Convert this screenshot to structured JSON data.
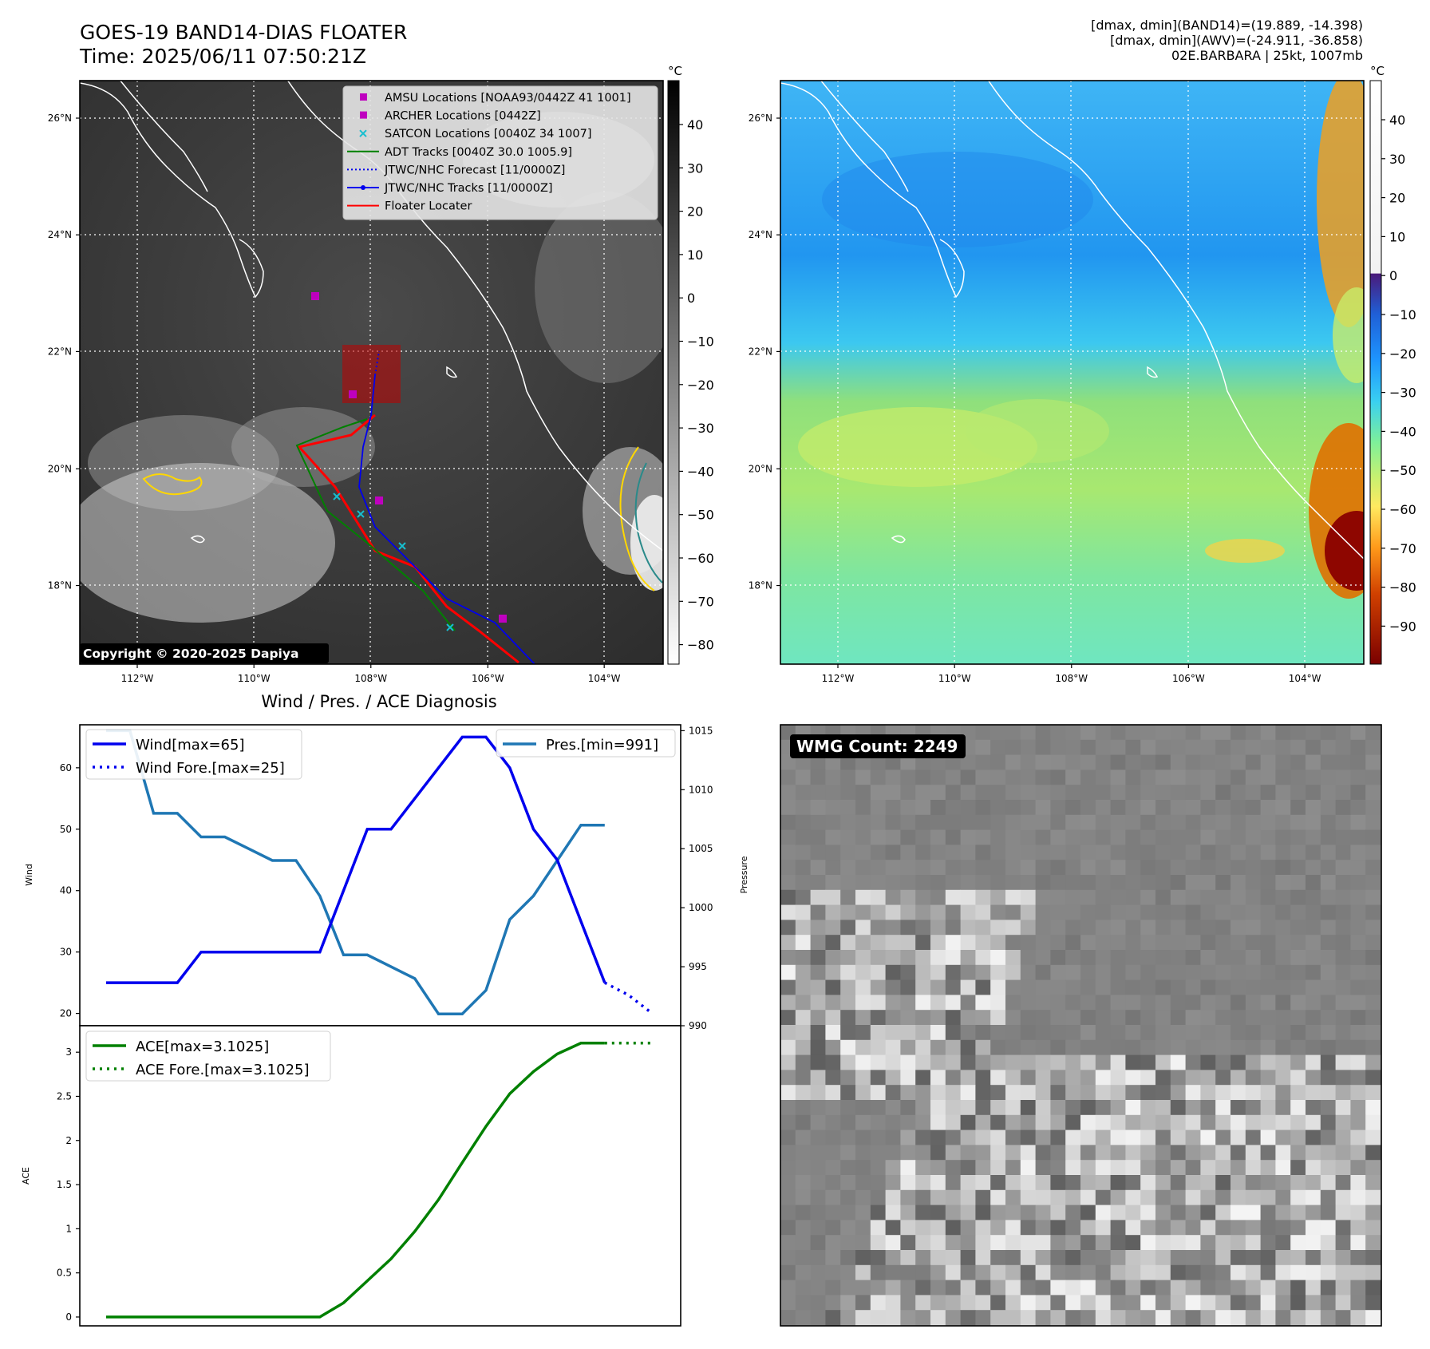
{
  "header": {
    "title_line1": "GOES-19 BAND14-DIAS FLOATER",
    "title_line2": "Time: 2025/06/11 07:50:21Z",
    "info_line1": "[dmax, dmin](BAND14)=(19.889, -14.398)",
    "info_line2": "[dmax, dmin](AWV)=(-24.911, -36.858)",
    "info_line3": "02E.BARBARA | 25kt, 1007mb"
  },
  "colors": {
    "wind": "#0000ee",
    "pressure": "#1f77b4",
    "ace": "#008000",
    "floater": "#ff0000",
    "amsu": "#bf00bf",
    "satcon": "#17becf",
    "adt": "#008000"
  },
  "map_ir": {
    "lon_ticks": [
      "112°W",
      "110°W",
      "108°W",
      "106°W",
      "104°W"
    ],
    "lat_ticks": [
      "26°N",
      "24°N",
      "22°N",
      "20°N",
      "18°N"
    ],
    "colorbar_unit": "°C",
    "colorbar_ticks": [
      "40",
      "30",
      "20",
      "10",
      "0",
      "−10",
      "−20",
      "−30",
      "−40",
      "−50",
      "−60",
      "−70",
      "−80"
    ],
    "legend": [
      {
        "label": "AMSU Locations [NOAA93/0442Z 41 1001]",
        "icon": "magenta-square"
      },
      {
        "label": "ARCHER Locations [0442Z]",
        "icon": "magenta-square"
      },
      {
        "label": "SATCON Locations [0040Z 34 1007]",
        "icon": "cyan-x"
      },
      {
        "label": "ADT Tracks [0040Z 30.0 1005.9]",
        "icon": "green-line"
      },
      {
        "label": "JTWC/NHC Forecast [11/0000Z]",
        "icon": "blue-dotted-line"
      },
      {
        "label": "JTWC/NHC Tracks [11/0000Z]",
        "icon": "blue-dot-line"
      },
      {
        "label": "Floater Locater",
        "icon": "red-line"
      }
    ],
    "copyright": "Copyright © 2020-2025 Dapiya"
  },
  "map_wv": {
    "lon_ticks": [
      "112°W",
      "110°W",
      "108°W",
      "106°W",
      "104°W"
    ],
    "lat_ticks": [
      "26°N",
      "24°N",
      "22°N",
      "20°N",
      "18°N"
    ],
    "colorbar_unit": "°C",
    "colorbar_ticks": [
      "40",
      "30",
      "20",
      "10",
      "0",
      "−10",
      "−20",
      "−30",
      "−40",
      "−50",
      "−60",
      "−70",
      "−80",
      "−90"
    ]
  },
  "wmg": {
    "label": "WMG Count: 2249"
  },
  "chart_data": [
    {
      "type": "line",
      "title": "Wind / Pres. / ACE Diagnosis",
      "ylabel": "Wind",
      "ylim": [
        18,
        67
      ],
      "yticks": [
        20,
        30,
        40,
        50,
        60
      ],
      "x": [
        0,
        1,
        2,
        3,
        4,
        5,
        6,
        7,
        8,
        9,
        10,
        11,
        12,
        13,
        14,
        15,
        16,
        17,
        18,
        19,
        20,
        21,
        22
      ],
      "series": [
        {
          "name": "Wind[max=65]",
          "values": [
            25,
            25,
            25,
            25,
            30,
            30,
            30,
            30,
            30,
            30,
            40,
            50,
            50,
            55,
            60,
            65,
            65,
            60,
            50,
            45,
            35,
            25,
            null
          ]
        },
        {
          "name": "Wind Fore.[max=25]",
          "x": [
            21,
            22,
            23
          ],
          "values": [
            25,
            23,
            20
          ]
        }
      ]
    },
    {
      "type": "line",
      "ylabel": "Pressure",
      "ylim": [
        990,
        1015.5
      ],
      "yticks": [
        990,
        995,
        1000,
        1005,
        1010,
        1015
      ],
      "x": [
        0,
        1,
        2,
        3,
        4,
        5,
        6,
        7,
        8,
        9,
        10,
        11,
        12,
        13,
        14,
        15,
        16,
        17,
        18,
        19,
        20,
        21
      ],
      "series": [
        {
          "name": "Pres.[min=991]",
          "values": [
            1015,
            1015,
            1008,
            1008,
            1006,
            1006,
            1005,
            1004,
            1004,
            1001,
            996,
            996,
            995,
            994,
            991,
            991,
            993,
            999,
            1001,
            1004,
            1007,
            1007
          ]
        }
      ]
    },
    {
      "type": "line",
      "ylabel": "ACE",
      "ylim": [
        -0.1,
        3.3
      ],
      "yticks": [
        0.0,
        0.5,
        1.0,
        1.5,
        2.0,
        2.5,
        3.0
      ],
      "x": [
        0,
        1,
        2,
        3,
        4,
        5,
        6,
        7,
        8,
        9,
        10,
        11,
        12,
        13,
        14,
        15,
        16,
        17,
        18,
        19,
        20,
        21
      ],
      "series": [
        {
          "name": "ACE[max=3.1025]",
          "values": [
            0,
            0,
            0,
            0,
            0,
            0,
            0,
            0,
            0,
            0,
            0.16,
            0.41,
            0.66,
            0.97,
            1.33,
            1.75,
            2.16,
            2.53,
            2.78,
            2.98,
            3.1025,
            3.1025
          ]
        },
        {
          "name": "ACE Fore.[max=3.1025]",
          "x": [
            21,
            22,
            23
          ],
          "values": [
            3.1025,
            3.1025,
            3.1025
          ]
        }
      ]
    }
  ]
}
